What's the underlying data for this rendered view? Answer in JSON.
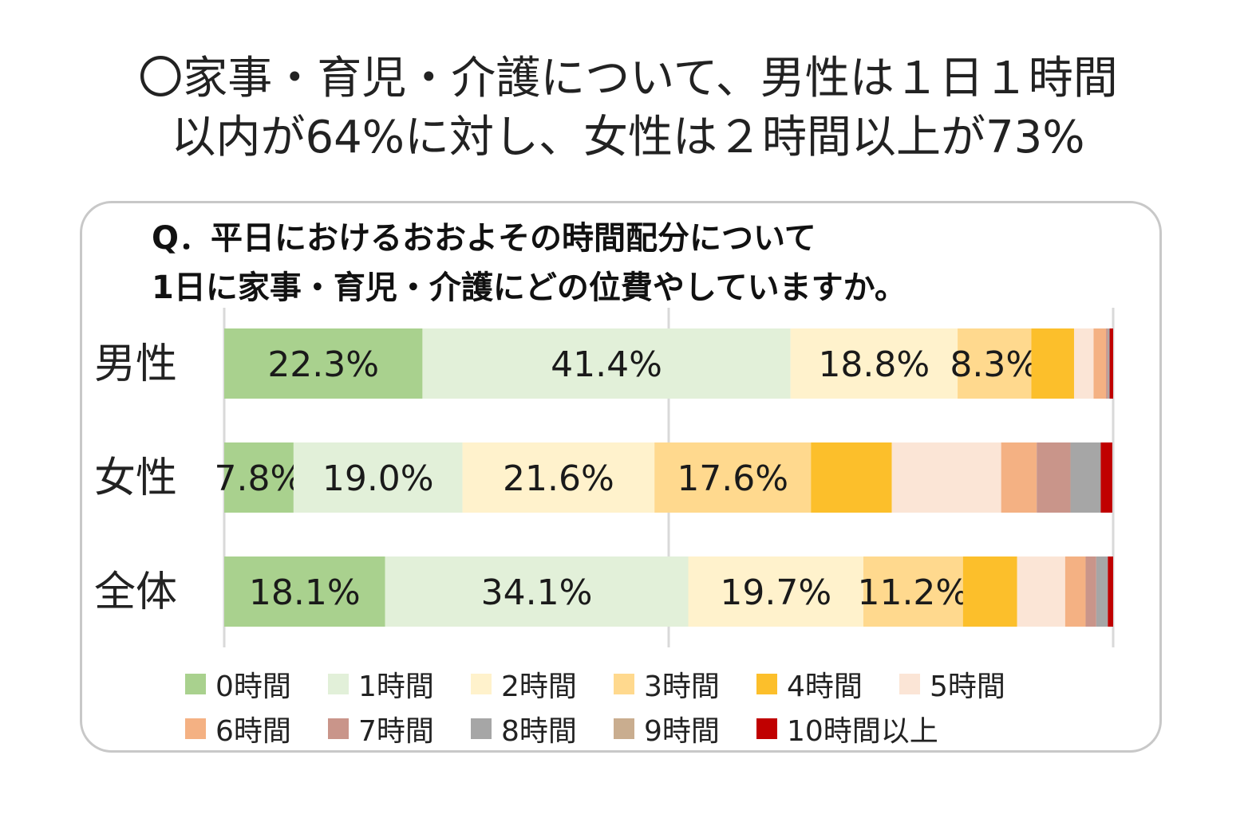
{
  "headline": {
    "line1": "〇家事・育児・介護について、男性は１日１時間",
    "line2": "以内が64%に対し、女性は２時間以上が73%"
  },
  "chart_data": {
    "type": "bar",
    "orientation": "horizontal-stacked-100",
    "title_lines": [
      "Q．平日におけるおおよその時間配分について",
      "1日に家事・育児・介護にどの位費やしていますか。"
    ],
    "categories": [
      "男性",
      "女性",
      "全体"
    ],
    "series": [
      {
        "name": "0時間",
        "color": "#a9d18e",
        "values": [
          22.3,
          7.8,
          18.1
        ],
        "labels": [
          "22.3%",
          "7.8%",
          "18.1%"
        ]
      },
      {
        "name": "1時間",
        "color": "#e2f0d9",
        "values": [
          41.4,
          19.0,
          34.1
        ],
        "labels": [
          "41.4%",
          "19.0%",
          "34.1%"
        ]
      },
      {
        "name": "2時間",
        "color": "#fff2cc",
        "values": [
          18.8,
          21.6,
          19.7
        ],
        "labels": [
          "18.8%",
          "21.6%",
          "19.7%"
        ]
      },
      {
        "name": "3時間",
        "color": "#ffd98e",
        "values": [
          8.3,
          17.6,
          11.2
        ],
        "labels": [
          "8.3%",
          "17.6%",
          "11.2%"
        ]
      },
      {
        "name": "4時間",
        "color": "#fcbf2b",
        "values": [
          4.8,
          9.1,
          6.1
        ],
        "labels": [
          "",
          "",
          ""
        ]
      },
      {
        "name": "5時間",
        "color": "#fbe5d6",
        "values": [
          2.2,
          12.3,
          5.4
        ],
        "labels": [
          "",
          "",
          ""
        ]
      },
      {
        "name": "6時間",
        "color": "#f4b183",
        "values": [
          1.4,
          4.0,
          2.3
        ],
        "labels": [
          "",
          "",
          ""
        ]
      },
      {
        "name": "7時間",
        "color": "#c9958a",
        "values": [
          0.2,
          3.8,
          1.2
        ],
        "labels": [
          "",
          "",
          ""
        ]
      },
      {
        "name": "8時間",
        "color": "#a6a6a6",
        "values": [
          0.2,
          3.4,
          1.3
        ],
        "labels": [
          "",
          "",
          ""
        ]
      },
      {
        "name": "9時間",
        "color": "#c9ad8f",
        "values": [
          0.0,
          0.0,
          0.0
        ],
        "labels": [
          "",
          "",
          ""
        ]
      },
      {
        "name": "10時間以上",
        "color": "#c00000",
        "values": [
          0.4,
          1.3,
          0.6
        ],
        "labels": [
          "",
          "",
          ""
        ]
      }
    ],
    "xlim": [
      0,
      100
    ],
    "grid": true,
    "legend_position": "bottom"
  }
}
